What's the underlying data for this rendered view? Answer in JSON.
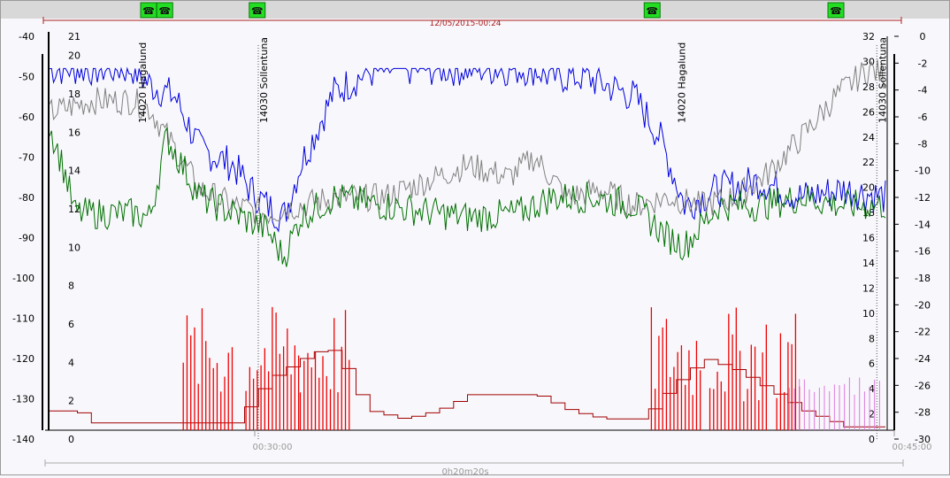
{
  "chart_data": {
    "type": "line",
    "title": "",
    "timestamp": "12/05/2015-00:24",
    "duration_label": "0h20m20s",
    "x_ticks": [
      "00:30:00",
      "00:45:00"
    ],
    "y_axes": [
      {
        "id": "rx_level",
        "ticks": [
          "-40",
          "-50",
          "-60",
          "-70",
          "-80",
          "-90",
          "-100",
          "-110",
          "-120",
          "-130",
          "-140"
        ],
        "ylim": [
          -140,
          -40
        ]
      },
      {
        "id": "quality",
        "ticks": [
          "21",
          "20",
          "18",
          "16",
          "14",
          "12",
          "10",
          "8",
          "6",
          "4",
          "2",
          "0"
        ],
        "ylim": [
          0,
          21
        ]
      },
      {
        "id": "right_inner",
        "ticks": [
          "32",
          "30",
          "28",
          "26",
          "24",
          "22",
          "20",
          "18",
          "16",
          "14",
          "12",
          "10",
          "8",
          "6",
          "4",
          "2",
          "0"
        ],
        "ylim": [
          0,
          32
        ]
      },
      {
        "id": "right_outer",
        "ticks": [
          "0",
          "-2",
          "-4",
          "-6",
          "-8",
          "-10",
          "-12",
          "-14",
          "-16",
          "-18",
          "-20",
          "-22",
          "-24",
          "-26",
          "-28",
          "-30"
        ],
        "ylim": [
          -30,
          0
        ]
      }
    ],
    "annotations": [
      {
        "label": "14020 Hagalund",
        "t": 0.11
      },
      {
        "label": "14030 Sollentuna",
        "t": 0.255
      },
      {
        "label": "14020 Hagalund",
        "t": 0.755
      },
      {
        "label": "14030 Sollentuna",
        "t": 0.995
      }
    ],
    "event_markers": [
      0.12,
      0.175,
      0.285,
      0.755,
      1.0
    ],
    "series": [
      {
        "color": "#0000dd",
        "axis": "rx_level",
        "t": [
          0,
          0.1,
          0.12,
          0.15,
          0.18,
          0.22,
          0.24,
          0.26,
          0.28,
          0.3,
          0.34,
          0.38,
          0.42,
          0.5,
          0.58,
          0.6,
          0.64,
          0.7,
          0.73,
          0.76,
          0.8,
          0.85,
          0.9,
          0.95,
          1.0
        ],
        "y": [
          -48,
          -48,
          -52,
          -55,
          -68,
          -72,
          -78,
          -82,
          -85,
          -72,
          -54,
          -49,
          -48,
          -48,
          -48,
          -50,
          -50,
          -55,
          -65,
          -82,
          -78,
          -76,
          -80,
          -78,
          -80
        ]
      },
      {
        "color": "#808080",
        "axis": "rx_level",
        "t": [
          0,
          0.05,
          0.1,
          0.12,
          0.15,
          0.18,
          0.22,
          0.26,
          0.3,
          0.34,
          0.4,
          0.45,
          0.5,
          0.55,
          0.58,
          0.62,
          0.66,
          0.7,
          0.74,
          0.78,
          0.82,
          0.86,
          0.9,
          0.94,
          0.98,
          1.0
        ],
        "y": [
          -59,
          -56,
          -56,
          -58,
          -68,
          -78,
          -82,
          -84,
          -82,
          -80,
          -80,
          -76,
          -72,
          -75,
          -70,
          -80,
          -78,
          -82,
          -80,
          -82,
          -80,
          -74,
          -65,
          -55,
          -48,
          -50
        ]
      },
      {
        "color": "#007000",
        "axis": "rx_level",
        "t": [
          0,
          0.02,
          0.03,
          0.06,
          0.1,
          0.12,
          0.14,
          0.18,
          0.22,
          0.26,
          0.28,
          0.3,
          0.34,
          0.4,
          0.5,
          0.56,
          0.6,
          0.65,
          0.7,
          0.74,
          0.76,
          0.8,
          0.85,
          0.9,
          0.95,
          1.0
        ],
        "y": [
          -62,
          -75,
          -84,
          -84,
          -84,
          -85,
          -65,
          -80,
          -84,
          -88,
          -95,
          -85,
          -80,
          -82,
          -85,
          -84,
          -80,
          -80,
          -82,
          -90,
          -92,
          -82,
          -82,
          -80,
          -82,
          -82
        ]
      },
      {
        "color": "#a00000",
        "axis": "rx_level",
        "t": [
          0,
          0.03,
          0.05,
          0.22,
          0.24,
          0.26,
          0.3,
          0.32,
          0.34,
          0.36,
          0.38,
          0.42,
          0.46,
          0.5,
          0.58,
          0.62,
          0.66,
          0.7,
          0.72,
          0.74,
          0.78,
          0.82,
          0.86,
          0.9,
          0.95,
          1.0
        ],
        "y": [
          -133,
          -133,
          -136,
          -136,
          -130,
          -125,
          -120,
          -118,
          -118,
          -127,
          -133,
          -135,
          -133,
          -129,
          -129,
          -133,
          -135,
          -135,
          -132,
          -127,
          -120,
          -123,
          -128,
          -133,
          -137,
          -137
        ]
      }
    ]
  }
}
